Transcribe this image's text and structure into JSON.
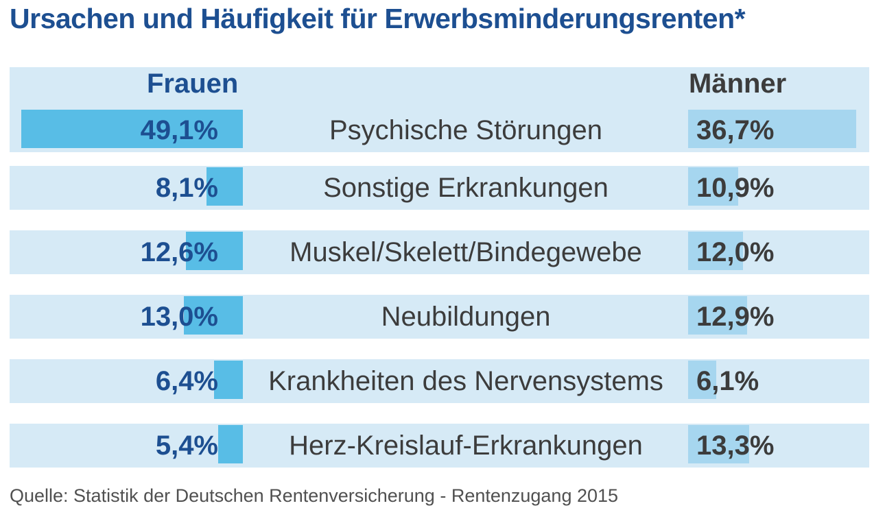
{
  "title": "Ursachen und Häufigkeit für Erwerbsminderungsrenten*",
  "colors": {
    "title": "#1d4f91",
    "band": "#d6eaf6",
    "women_bar": "#58bde6",
    "men_bar": "#a6d6ef",
    "text": "#3c3c3c"
  },
  "chart_data": {
    "type": "bar",
    "orientation": "horizontal-butterfly",
    "unit": "%",
    "categories": [
      "Psychische Störungen",
      "Sonstige Erkrankungen",
      "Muskel/Skelett/Bindegewebe",
      "Neubildungen",
      "Krankheiten des Nervensystems",
      "Herz-Kreislauf-Erkrankungen"
    ],
    "series": [
      {
        "name": "Frauen",
        "values": [
          49.1,
          8.1,
          12.6,
          13.0,
          6.4,
          5.4
        ],
        "labels": [
          "49,1%",
          "8,1%",
          "12,6%",
          "13,0%",
          "6,4%",
          "5,4%"
        ]
      },
      {
        "name": "Männer",
        "values": [
          36.7,
          10.9,
          12.0,
          12.9,
          6.1,
          13.3
        ],
        "labels": [
          "36,7%",
          "10,9%",
          "12,0%",
          "12,9%",
          "6,1%",
          "13,3%"
        ]
      }
    ],
    "source": "Quelle: Statistik der Deutschen Rentenversicherung - Rentenzugang 2015"
  }
}
